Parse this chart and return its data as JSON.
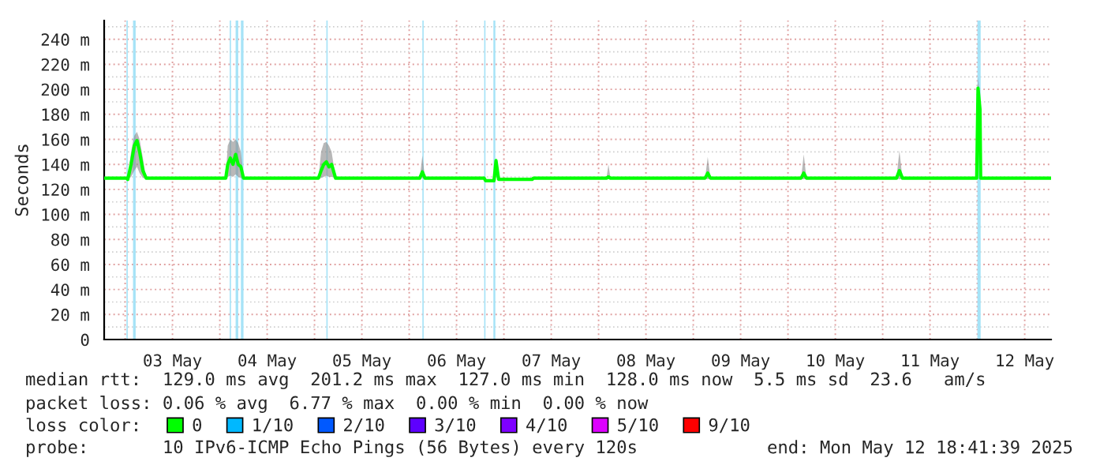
{
  "chart_data": {
    "type": "line",
    "ylabel": "Seconds",
    "x": [
      "2025-05-02T18:41",
      "2025-05-03T00:20",
      "2025-05-03T00:40",
      "2025-05-03T01:30",
      "2025-05-03T02:20",
      "2025-05-03T03:00",
      "2025-05-03T03:40",
      "2025-05-03T04:30",
      "2025-05-03T05:20",
      "2025-05-04T01:30",
      "2025-05-04T02:00",
      "2025-05-04T02:40",
      "2025-05-04T03:20",
      "2025-05-04T04:00",
      "2025-05-04T04:40",
      "2025-05-04T05:20",
      "2025-05-04T06:00",
      "2025-05-05T01:00",
      "2025-05-05T01:40",
      "2025-05-05T02:20",
      "2025-05-05T03:00",
      "2025-05-05T03:40",
      "2025-05-05T04:20",
      "2025-05-05T05:20",
      "2025-05-06T02:40",
      "2025-05-06T03:20",
      "2025-05-06T04:00",
      "2025-05-06T19:00",
      "2025-05-06T19:20",
      "2025-05-06T21:30",
      "2025-05-06T22:00",
      "2025-05-06T22:40",
      "2025-05-07T07:10",
      "2025-05-07T07:30",
      "2025-05-08T02:00",
      "2025-05-08T02:30",
      "2025-05-08T03:00",
      "2025-05-09T03:00",
      "2025-05-09T03:40",
      "2025-05-09T04:20",
      "2025-05-10T03:20",
      "2025-05-10T04:00",
      "2025-05-10T04:40",
      "2025-05-11T03:30",
      "2025-05-11T04:15",
      "2025-05-11T05:00",
      "2025-05-11T23:50",
      "2025-05-12T00:10",
      "2025-05-12T00:40",
      "2025-05-12T00:50",
      "2025-05-12T18:41"
    ],
    "series": [
      {
        "name": "0",
        "color": "#00ff00",
        "values": [
          129,
          129,
          128,
          140,
          155,
          159,
          150,
          135,
          129,
          129,
          140,
          145,
          140,
          148,
          140,
          138,
          129,
          129,
          135,
          140,
          142,
          138,
          140,
          129,
          129,
          134,
          129,
          129,
          127,
          127,
          143,
          128,
          128,
          129,
          129,
          130,
          129,
          129,
          133,
          129,
          129,
          133,
          129,
          129,
          135,
          129,
          129,
          201,
          184,
          129,
          129
        ],
        "lower": [
          129,
          129,
          128,
          130,
          135,
          138,
          133,
          129,
          129,
          129,
          130,
          131,
          130,
          132,
          130,
          129,
          129,
          129,
          129,
          130,
          131,
          130,
          130,
          129,
          129,
          129,
          129,
          129,
          127,
          127,
          130,
          128,
          128,
          129,
          129,
          129,
          129,
          129,
          128,
          129,
          129,
          128,
          129,
          129,
          128,
          129,
          129,
          185,
          170,
          129,
          129
        ],
        "upper": [
          129,
          129,
          128,
          150,
          163,
          166,
          160,
          145,
          129,
          129,
          155,
          160,
          158,
          160,
          157,
          150,
          129,
          129,
          150,
          157,
          158,
          155,
          150,
          129,
          129,
          147,
          129,
          129,
          127,
          127,
          145,
          128,
          128,
          129,
          129,
          140,
          129,
          129,
          146,
          129,
          129,
          148,
          129,
          129,
          151,
          129,
          129,
          210,
          195,
          129,
          129
        ]
      },
      {
        "name": "1/10",
        "color": "#00b8ff",
        "values": [
          null,
          null,
          null,
          null,
          null,
          null,
          null,
          null,
          null,
          null,
          null,
          null,
          null,
          null,
          null,
          null,
          null,
          null,
          null,
          null,
          null,
          null,
          null,
          null,
          null,
          null,
          null,
          null,
          null,
          null,
          null,
          null,
          null,
          null,
          null,
          null,
          null,
          null,
          null,
          null,
          null,
          null,
          null,
          null,
          null,
          null,
          null,
          null,
          null,
          null,
          null
        ]
      },
      {
        "name": "2/10",
        "color": "#0059ff",
        "values": [
          null,
          null,
          null,
          null,
          null,
          null,
          null,
          null,
          null,
          null,
          null,
          null,
          null,
          null,
          null,
          null,
          null,
          null,
          null,
          null,
          null,
          null,
          null,
          null,
          null,
          null,
          null,
          null,
          null,
          null,
          null,
          null,
          null,
          null,
          null,
          null,
          null,
          null,
          null,
          null,
          null,
          null,
          null,
          null,
          null,
          null,
          null,
          null,
          null,
          null,
          null
        ]
      },
      {
        "name": "3/10",
        "color": "#5e00ff",
        "values": [
          null,
          null,
          null,
          null,
          null,
          null,
          null,
          null,
          null,
          null,
          null,
          null,
          null,
          null,
          null,
          null,
          null,
          null,
          null,
          null,
          null,
          null,
          null,
          null,
          null,
          null,
          null,
          null,
          null,
          null,
          null,
          null,
          null,
          null,
          null,
          null,
          null,
          null,
          null,
          null,
          null,
          null,
          null,
          null,
          null,
          null,
          null,
          null,
          null,
          null,
          null
        ]
      },
      {
        "name": "4/10",
        "color": "#7e00ff",
        "values": [
          null,
          null,
          null,
          null,
          null,
          null,
          null,
          null,
          null,
          null,
          null,
          null,
          null,
          null,
          null,
          null,
          null,
          null,
          null,
          null,
          null,
          null,
          null,
          null,
          null,
          null,
          null,
          null,
          null,
          null,
          null,
          null,
          null,
          null,
          null,
          null,
          null,
          null,
          null,
          null,
          null,
          null,
          null,
          null,
          null,
          null,
          null,
          null,
          null,
          null,
          null
        ]
      },
      {
        "name": "5/10",
        "color": "#dd00ff",
        "values": [
          null,
          null,
          null,
          null,
          null,
          null,
          null,
          null,
          null,
          null,
          null,
          null,
          null,
          null,
          null,
          null,
          null,
          null,
          null,
          null,
          null,
          null,
          null,
          null,
          null,
          null,
          null,
          null,
          null,
          null,
          null,
          null,
          null,
          null,
          null,
          null,
          null,
          null,
          null,
          null,
          null,
          null,
          null,
          null,
          null,
          null,
          null,
          null,
          null,
          null,
          null
        ]
      },
      {
        "name": "9/10",
        "color": "#ff0000",
        "values": [
          null,
          null,
          null,
          null,
          null,
          null,
          null,
          null,
          null,
          null,
          null,
          null,
          null,
          null,
          null,
          null,
          null,
          null,
          null,
          null,
          null,
          null,
          null,
          null,
          null,
          null,
          null,
          null,
          null,
          null,
          null,
          null,
          null,
          null,
          null,
          null,
          null,
          null,
          null,
          null,
          null,
          null,
          null,
          null,
          null,
          null,
          null,
          null,
          null,
          null,
          null
        ]
      }
    ],
    "xlim": [
      "2025-05-02T18:41",
      "2025-05-12T18:41"
    ],
    "xticks": [
      {
        "value": "2025-05-03T00:00",
        "label": null
      },
      {
        "value": "2025-05-03T12:00",
        "label": "03 May"
      },
      {
        "value": "2025-05-04T00:00",
        "label": null
      },
      {
        "value": "2025-05-04T12:00",
        "label": "04 May"
      },
      {
        "value": "2025-05-05T00:00",
        "label": null
      },
      {
        "value": "2025-05-05T12:00",
        "label": "05 May"
      },
      {
        "value": "2025-05-06T00:00",
        "label": null
      },
      {
        "value": "2025-05-06T12:00",
        "label": "06 May"
      },
      {
        "value": "2025-05-07T00:00",
        "label": null
      },
      {
        "value": "2025-05-07T12:00",
        "label": "07 May"
      },
      {
        "value": "2025-05-08T00:00",
        "label": null
      },
      {
        "value": "2025-05-08T12:00",
        "label": "08 May"
      },
      {
        "value": "2025-05-09T00:00",
        "label": null
      },
      {
        "value": "2025-05-09T12:00",
        "label": "09 May"
      },
      {
        "value": "2025-05-10T00:00",
        "label": null
      },
      {
        "value": "2025-05-10T12:00",
        "label": "10 May"
      },
      {
        "value": "2025-05-11T00:00",
        "label": null
      },
      {
        "value": "2025-05-11T12:00",
        "label": "11 May"
      },
      {
        "value": "2025-05-12T00:00",
        "label": null
      },
      {
        "value": "2025-05-12T12:00",
        "label": "12 May"
      }
    ],
    "ylim": [
      0,
      255
    ],
    "yticks": [
      0,
      {
        "value": 20,
        "label": "20 m"
      },
      {
        "value": 40,
        "label": "40 m"
      },
      {
        "value": 60,
        "label": "60 m"
      },
      {
        "value": 80,
        "label": "80 m"
      },
      {
        "value": 100,
        "label": "100 m"
      },
      {
        "value": 120,
        "label": "120 m"
      },
      {
        "value": 140,
        "label": "140 m"
      },
      {
        "value": 160,
        "label": "160 m"
      },
      {
        "value": 180,
        "label": "180 m"
      },
      {
        "value": 200,
        "label": "200 m"
      },
      {
        "value": 220,
        "label": "220 m"
      },
      {
        "value": 240,
        "label": "240 m"
      }
    ],
    "bands": [
      {
        "axis": "x",
        "from": "2025-05-03T00:20",
        "to": "2025-05-03T00:40",
        "color": "#a6e3f7"
      },
      {
        "axis": "x",
        "from": "2025-05-03T02:00",
        "to": "2025-05-03T02:40",
        "color": "#a6e3f7"
      },
      {
        "axis": "x",
        "from": "2025-05-04T02:30",
        "to": "2025-05-04T02:50",
        "color": "#a6e3f7"
      },
      {
        "axis": "x",
        "from": "2025-05-04T04:00",
        "to": "2025-05-04T04:40",
        "color": "#a6e3f7"
      },
      {
        "axis": "x",
        "from": "2025-05-04T05:20",
        "to": "2025-05-04T06:00",
        "color": "#a6e3f7"
      },
      {
        "axis": "x",
        "from": "2025-05-05T03:00",
        "to": "2025-05-05T03:20",
        "color": "#a6e3f7"
      },
      {
        "axis": "x",
        "from": "2025-05-06T03:20",
        "to": "2025-05-06T03:40",
        "color": "#a6e3f7"
      },
      {
        "axis": "x",
        "from": "2025-05-06T19:00",
        "to": "2025-05-06T19:20",
        "color": "#a6e3f7"
      },
      {
        "axis": "x",
        "from": "2025-05-06T21:20",
        "to": "2025-05-06T21:50",
        "color": "#a6e3f7"
      },
      {
        "axis": "x",
        "from": "2025-05-12T00:00",
        "to": "2025-05-12T00:50",
        "color": "#a6e3f7"
      }
    ],
    "grid": true,
    "legend": "bottom",
    "legend_title": "loss color:",
    "annotations": [
      "median rtt:  129.0 ms avg  201.2 ms max  127.0 ms min  128.0 ms now  5.5 ms sd  23.6   am/s",
      "packet loss: 0.06 % avg  6.77 % max  0.00 % min  0.00 % now",
      "probe:       10 IPv6-ICMP Echo Pings (56 Bytes) every 120s",
      "end: Mon May 12 18:41:39 2025"
    ]
  }
}
